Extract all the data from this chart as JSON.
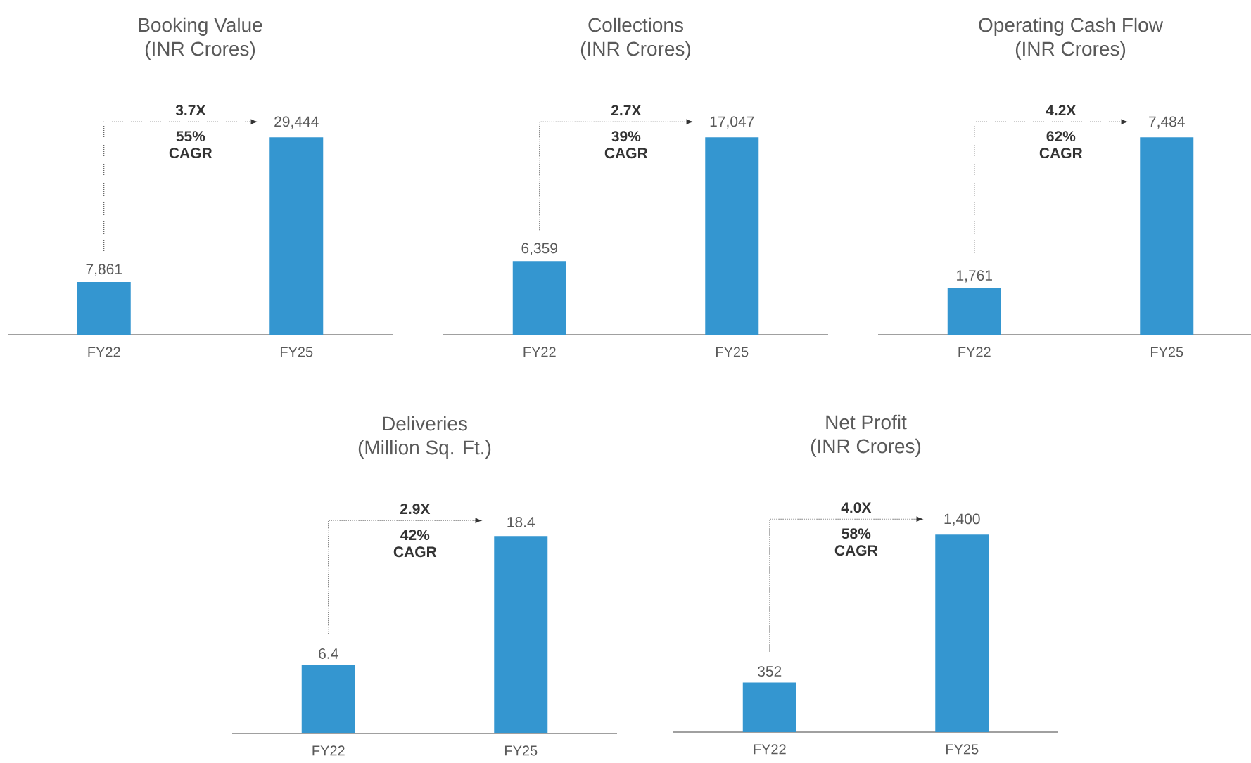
{
  "chart_data": [
    {
      "type": "bar",
      "title": "Booking Value",
      "subtitle": "(INR Crores)",
      "categories": [
        "FY22",
        "FY25"
      ],
      "values": [
        7861,
        29444
      ],
      "value_labels": [
        "7,861",
        "29,444"
      ],
      "color": "#3496d0",
      "annotations": [
        "3.7X",
        "55% CAGR"
      ]
    },
    {
      "type": "bar",
      "title": "Collections",
      "subtitle": "(INR Crores)",
      "categories": [
        "FY22",
        "FY25"
      ],
      "values": [
        6359,
        17047
      ],
      "value_labels": [
        "6,359",
        "17,047"
      ],
      "color": "#3496d0",
      "annotations": [
        "2.7X",
        "39% CAGR"
      ]
    },
    {
      "type": "bar",
      "title": "Operating Cash Flow",
      "subtitle": "(INR Crores)",
      "categories": [
        "FY22",
        "FY25"
      ],
      "values": [
        1761,
        7484
      ],
      "value_labels": [
        "1,761",
        "7,484"
      ],
      "color": "#3496d0",
      "annotations": [
        "4.2X",
        "62% CAGR"
      ]
    },
    {
      "type": "bar",
      "title": "Deliveries",
      "subtitle": "(Million Sq. Ft.)",
      "categories": [
        "FY22",
        "FY25"
      ],
      "values": [
        6.4,
        18.4
      ],
      "value_labels": [
        "6.4",
        "18.4"
      ],
      "color": "#3496d0",
      "annotations": [
        "2.9X",
        "42% CAGR"
      ]
    },
    {
      "type": "bar",
      "title": "Net Profit",
      "subtitle": "(INR Crores)",
      "categories": [
        "FY22",
        "FY25"
      ],
      "values": [
        352,
        1400
      ],
      "value_labels": [
        "352",
        "1,400"
      ],
      "color": "#3496d0",
      "annotations": [
        "4.0X",
        "58% CAGR"
      ]
    }
  ]
}
